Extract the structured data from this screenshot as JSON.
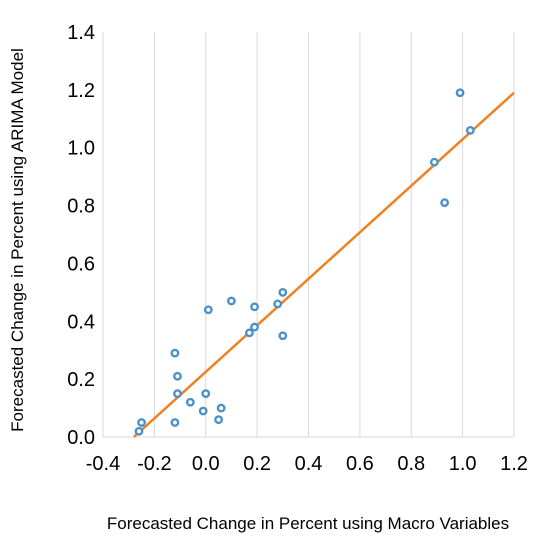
{
  "chart_data": {
    "type": "scatter",
    "title": "",
    "xlabel": "Forecasted Change in Percent using Macro Variables",
    "ylabel": "Forecasted Change in Percent using ARIMA Model",
    "xlim": [
      -0.4,
      1.2
    ],
    "ylim": [
      0.0,
      1.4
    ],
    "x_ticks": [
      -0.4,
      -0.2,
      0.0,
      0.2,
      0.4,
      0.6,
      0.8,
      1.0,
      1.2
    ],
    "y_ticks": [
      0.0,
      0.2,
      0.4,
      0.6,
      0.8,
      1.0,
      1.2,
      1.4
    ],
    "x_tick_labels": [
      "-0.4",
      "-0.2",
      "0.0",
      "0.2",
      "0.4",
      "0.6",
      "0.8",
      "1.0",
      "1.2"
    ],
    "y_tick_labels": [
      "0.0",
      "0.2",
      "0.4",
      "0.6",
      "0.8",
      "1.0",
      "1.2",
      "1.4"
    ],
    "grid": "vertical-only",
    "legend": "none",
    "series": [
      {
        "kind": "points",
        "color": "#4A90C8",
        "points": [
          {
            "x": -0.25,
            "y": 0.05
          },
          {
            "x": -0.26,
            "y": 0.02
          },
          {
            "x": -0.12,
            "y": 0.05
          },
          {
            "x": -0.12,
            "y": 0.29
          },
          {
            "x": -0.11,
            "y": 0.21
          },
          {
            "x": -0.11,
            "y": 0.15
          },
          {
            "x": -0.06,
            "y": 0.12
          },
          {
            "x": -0.01,
            "y": 0.09
          },
          {
            "x": 0.0,
            "y": 0.15
          },
          {
            "x": 0.01,
            "y": 0.44
          },
          {
            "x": 0.05,
            "y": 0.06
          },
          {
            "x": 0.06,
            "y": 0.1
          },
          {
            "x": 0.1,
            "y": 0.47
          },
          {
            "x": 0.17,
            "y": 0.36
          },
          {
            "x": 0.19,
            "y": 0.38
          },
          {
            "x": 0.19,
            "y": 0.45
          },
          {
            "x": 0.28,
            "y": 0.46
          },
          {
            "x": 0.3,
            "y": 0.5
          },
          {
            "x": 0.3,
            "y": 0.35
          },
          {
            "x": 0.89,
            "y": 0.95
          },
          {
            "x": 0.93,
            "y": 0.81
          },
          {
            "x": 0.99,
            "y": 1.19
          },
          {
            "x": 1.03,
            "y": 1.06
          }
        ]
      },
      {
        "kind": "trendline",
        "color": "#F08020",
        "x": [
          -0.28,
          1.2
        ],
        "y": [
          0.0,
          1.19
        ]
      }
    ]
  }
}
